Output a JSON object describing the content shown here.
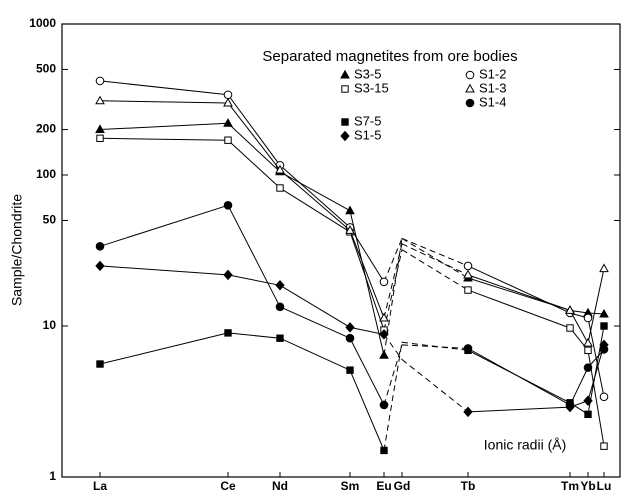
{
  "chart_data": {
    "type": "line",
    "title": "Separated magnetites from ore bodies",
    "y_label": "Sample/Chondrite",
    "annotation": "Ionic radii (Å)",
    "categories": [
      "La",
      "Ce",
      "Nd",
      "Sm",
      "Eu",
      "Gd",
      "Tb",
      "Tm",
      "Yb",
      "Lu"
    ],
    "log_y": true,
    "ylim": [
      1,
      1000
    ],
    "yticks": [
      1,
      10,
      50,
      100,
      200,
      500,
      1000
    ],
    "series": [
      {
        "name": "S3-5",
        "color": "#000",
        "marker": "triangle",
        "filled": true,
        "values": [
          200,
          220,
          105,
          58,
          6.4,
          38,
          20.8,
          12.7,
          12.2,
          12
        ]
      },
      {
        "name": "S3-15",
        "color": "#000",
        "marker": "square",
        "filled": false,
        "values": [
          175,
          170,
          82,
          42,
          9.4,
          32,
          17.3,
          9.7,
          6.9,
          1.6
        ]
      },
      {
        "name": "S7-5",
        "color": "#000",
        "marker": "square",
        "filled": true,
        "values": [
          5.6,
          9,
          8.3,
          5.1,
          1.5,
          7.8,
          6.9,
          3.1,
          2.6,
          10
        ]
      },
      {
        "name": "S1-5",
        "color": "#000",
        "marker": "diamond",
        "filled": true,
        "values": [
          25,
          21.8,
          18.6,
          9.8,
          8.8,
          6,
          2.7,
          2.9,
          3.2,
          7.5
        ]
      },
      {
        "name": "S1-2",
        "color": "#000",
        "marker": "circle",
        "filled": false,
        "values": [
          420,
          340,
          116,
          45,
          19.6,
          38,
          25,
          12.2,
          11.3,
          3.4
        ]
      },
      {
        "name": "S1-3",
        "color": "#000",
        "marker": "triangle",
        "filled": false,
        "values": [
          310,
          300,
          108,
          43,
          11.3,
          35,
          21.8,
          12.7,
          7.7,
          24
        ]
      },
      {
        "name": "S1-4",
        "color": "#000",
        "marker": "circle",
        "filled": true,
        "values": [
          33.7,
          63,
          13.4,
          8.3,
          3,
          7.5,
          7.1,
          3,
          5.3,
          7
        ]
      }
    ]
  }
}
